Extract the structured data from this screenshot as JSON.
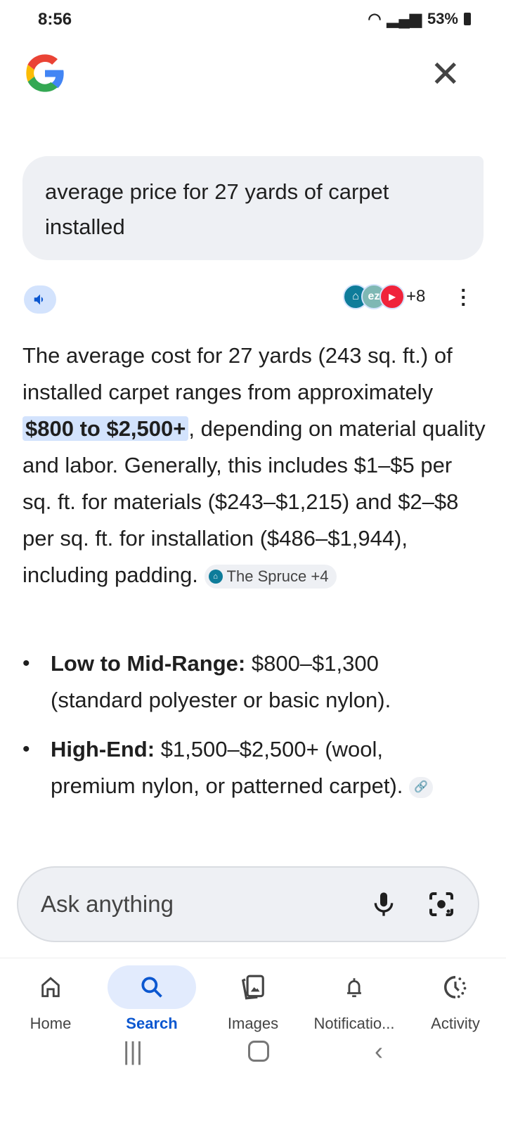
{
  "status_bar": {
    "time": "8:56",
    "battery": "53%"
  },
  "query": "average price for 27 yards of carpet installed",
  "sources": {
    "more": "+8"
  },
  "answer": {
    "p1": "The average cost for 27 yards (243 sq. ft.) of installed carpet ranges from approximately ",
    "highlight": "$800 to $2,500+",
    "p2": ", depending on material quality and labor. Generally, this includes $1–$5 per sq. ft. for materials ($243–$1,215) and $2–$8 per sq. ft. for installation ($486–$1,944), including padding. ",
    "chip": "The Spruce +4"
  },
  "bullets": [
    {
      "label": "Low to Mid-Range:",
      "text": " $800–$1,300 (standard polyester or basic nylon)."
    },
    {
      "label": "High-End:",
      "text": " $1,500–$2,500+ (wool, premium nylon, or patterned carpet). "
    }
  ],
  "ask": {
    "placeholder": "Ask anything"
  },
  "nav": [
    {
      "label": "Home"
    },
    {
      "label": "Search",
      "active": true
    },
    {
      "label": "Images"
    },
    {
      "label": "Notificatio..."
    },
    {
      "label": "Activity"
    }
  ],
  "colors": {
    "accent": "#0b57d0",
    "highlight": "#d3e3fd"
  }
}
